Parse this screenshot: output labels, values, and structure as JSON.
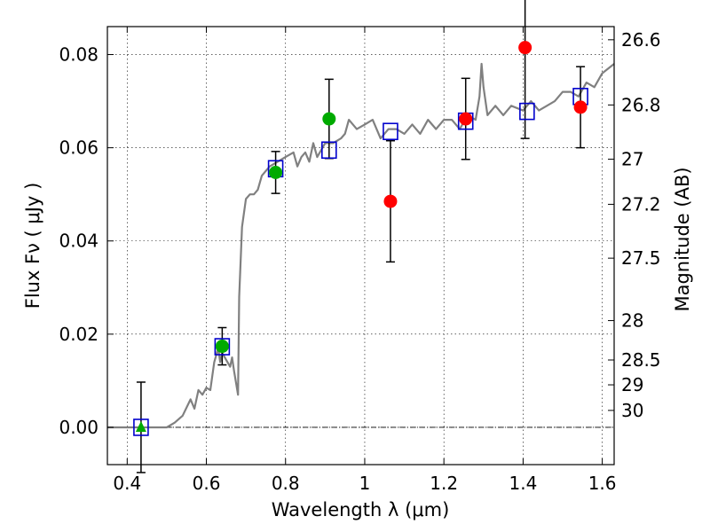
{
  "chart_data": {
    "type": "scatter",
    "xlabel": "Wavelength  λ (μm)",
    "ylabel": "Flux  Fν  ( μJy )",
    "y2label": "Magnitude (AB)",
    "xlim": [
      0.35,
      1.63
    ],
    "ylim": [
      -0.008,
      0.086
    ],
    "grid": true,
    "x_ticks": [
      {
        "value": 0.4,
        "label": "0.4"
      },
      {
        "value": 0.6,
        "label": "0.6"
      },
      {
        "value": 0.8,
        "label": "0.8"
      },
      {
        "value": 1.0,
        "label": "1"
      },
      {
        "value": 1.2,
        "label": "1.2"
      },
      {
        "value": 1.4,
        "label": "1.4"
      },
      {
        "value": 1.6,
        "label": "1.6"
      }
    ],
    "y_ticks": [
      {
        "value": 0.0,
        "label": "0.00"
      },
      {
        "value": 0.02,
        "label": "0.02"
      },
      {
        "value": 0.04,
        "label": "0.04"
      },
      {
        "value": 0.06,
        "label": "0.06"
      },
      {
        "value": 0.08,
        "label": "0.08"
      }
    ],
    "y2_ticks": [
      {
        "value": 26.6,
        "label": "26.6"
      },
      {
        "value": 26.8,
        "label": "26.8"
      },
      {
        "value": 27.0,
        "label": "27"
      },
      {
        "value": 27.2,
        "label": "27.2"
      },
      {
        "value": 27.5,
        "label": "27.5"
      },
      {
        "value": 28.0,
        "label": "28"
      },
      {
        "value": 28.5,
        "label": "28.5"
      },
      {
        "value": 29.0,
        "label": "29"
      },
      {
        "value": 30.0,
        "label": "30"
      }
    ],
    "colors": {
      "model": "#808080",
      "green": "#00aa00",
      "red": "#ff0000",
      "square": "#0000cc",
      "errorbar": "#000000",
      "zero_line": "#000000"
    },
    "model_spectrum": {
      "name": "",
      "x": [
        0.35,
        0.5,
        0.52,
        0.54,
        0.56,
        0.57,
        0.58,
        0.59,
        0.6,
        0.61,
        0.62,
        0.63,
        0.635,
        0.64,
        0.65,
        0.66,
        0.665,
        0.67,
        0.675,
        0.68,
        0.683,
        0.69,
        0.7,
        0.71,
        0.72,
        0.73,
        0.74,
        0.75,
        0.76,
        0.78,
        0.8,
        0.82,
        0.83,
        0.84,
        0.85,
        0.86,
        0.87,
        0.88,
        0.9,
        0.92,
        0.94,
        0.95,
        0.96,
        0.98,
        1.0,
        1.02,
        1.04,
        1.06,
        1.08,
        1.1,
        1.12,
        1.14,
        1.16,
        1.18,
        1.2,
        1.22,
        1.24,
        1.26,
        1.28,
        1.29,
        1.295,
        1.3,
        1.31,
        1.33,
        1.35,
        1.37,
        1.4,
        1.42,
        1.44,
        1.46,
        1.48,
        1.5,
        1.52,
        1.54,
        1.56,
        1.58,
        1.6,
        1.63
      ],
      "y": [
        0.0,
        0.0,
        0.001,
        0.0025,
        0.006,
        0.004,
        0.008,
        0.007,
        0.0085,
        0.008,
        0.014,
        0.017,
        0.014,
        0.016,
        0.0145,
        0.013,
        0.015,
        0.012,
        0.0095,
        0.007,
        0.028,
        0.043,
        0.049,
        0.05,
        0.05,
        0.051,
        0.054,
        0.055,
        0.056,
        0.057,
        0.058,
        0.059,
        0.056,
        0.058,
        0.059,
        0.057,
        0.061,
        0.058,
        0.061,
        0.061,
        0.062,
        0.063,
        0.066,
        0.064,
        0.065,
        0.066,
        0.062,
        0.064,
        0.064,
        0.063,
        0.065,
        0.063,
        0.066,
        0.064,
        0.066,
        0.066,
        0.064,
        0.067,
        0.066,
        0.071,
        0.078,
        0.073,
        0.067,
        0.069,
        0.067,
        0.069,
        0.068,
        0.07,
        0.068,
        0.069,
        0.07,
        0.072,
        0.072,
        0.071,
        0.074,
        0.073,
        0.076,
        0.078
      ]
    },
    "series": [
      {
        "marker": "square",
        "x": [
          0.435,
          0.64,
          0.775,
          0.91,
          1.065,
          1.255,
          1.41,
          1.545
        ],
        "y": [
          0.0,
          0.0173,
          0.0555,
          0.0595,
          0.0635,
          0.0657,
          0.0678,
          0.071
        ]
      },
      {
        "marker": "triangle",
        "x": [
          0.435
        ],
        "y": [
          0.0
        ],
        "err": [
          0.0097
        ]
      },
      {
        "marker": "circle-green",
        "x": [
          0.64,
          0.775,
          0.91
        ],
        "y": [
          0.0174,
          0.0547,
          0.0662
        ],
        "err": [
          0.004,
          0.0045,
          0.0085
        ]
      },
      {
        "marker": "circle-red",
        "x": [
          1.065,
          1.255,
          1.405,
          1.545
        ],
        "y": [
          0.0485,
          0.0662,
          0.0815,
          0.0687
        ],
        "err": [
          0.013,
          0.0087,
          0.0195,
          0.0087
        ]
      }
    ]
  }
}
